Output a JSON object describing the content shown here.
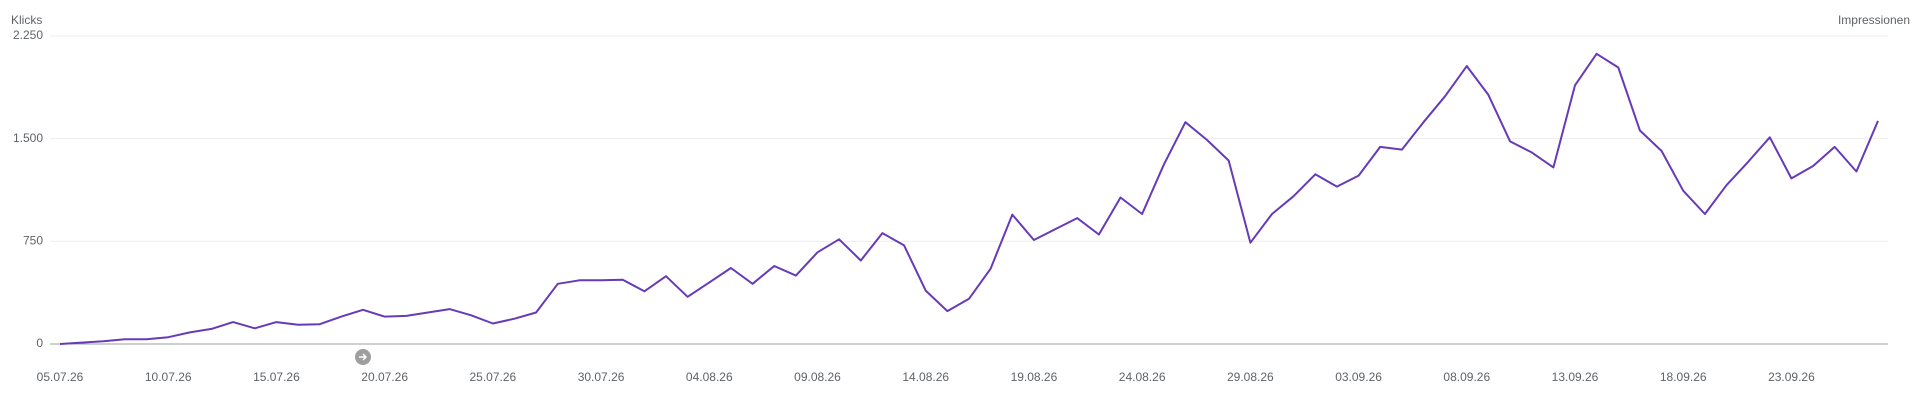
{
  "chart_data": {
    "type": "line",
    "y_axis_label": "Klicks",
    "y2_axis_label": "Impressionen",
    "categories": [
      "05.07.26",
      null,
      null,
      null,
      null,
      "10.07.26",
      null,
      null,
      null,
      null,
      "15.07.26",
      null,
      null,
      null,
      null,
      "20.07.26",
      null,
      null,
      null,
      null,
      "25.07.26",
      null,
      null,
      null,
      null,
      "30.07.26",
      null,
      null,
      null,
      null,
      "04.08.26",
      null,
      null,
      null,
      null,
      "09.08.26",
      null,
      null,
      null,
      null,
      "14.08.26",
      null,
      null,
      null,
      null,
      "19.08.26",
      null,
      null,
      null,
      null,
      "24.08.26",
      null,
      null,
      null,
      null,
      "29.08.26",
      null,
      null,
      null,
      null,
      "03.09.26",
      null,
      null,
      null,
      null,
      "08.09.26",
      null,
      null,
      null,
      null,
      "13.09.26",
      null,
      null,
      null,
      null,
      "18.09.26",
      null,
      null,
      null,
      null,
      "23.09.26",
      null,
      null,
      null,
      null
    ],
    "series": [
      {
        "color": "#673ab7",
        "values": [
          0,
          10,
          20,
          35,
          35,
          50,
          85,
          110,
          160,
          115,
          160,
          140,
          145,
          200,
          250,
          200,
          205,
          230,
          255,
          210,
          150,
          185,
          230,
          440,
          465,
          465,
          470,
          385,
          495,
          345,
          450,
          555,
          440,
          570,
          500,
          670,
          765,
          610,
          810,
          720,
          390,
          240,
          330,
          550,
          945,
          760,
          840,
          920,
          800,
          1070,
          950,
          1310,
          1620,
          1490,
          1340,
          740,
          950,
          1080,
          1240,
          1150,
          1230,
          1440,
          1420,
          1620,
          1810,
          2030,
          1820,
          1480,
          1400,
          1290,
          1890,
          2120,
          2020,
          1560,
          1410,
          1120,
          950,
          1160,
          1330,
          1510,
          1210,
          1300,
          1440,
          1260,
          1630
        ]
      }
    ],
    "ylim": [
      0,
      2250
    ],
    "yticks": [
      0,
      750,
      {
        "value": 1500,
        "label": "1.500"
      },
      {
        "value": 2250,
        "label": "2.250"
      }
    ],
    "grid": true
  }
}
